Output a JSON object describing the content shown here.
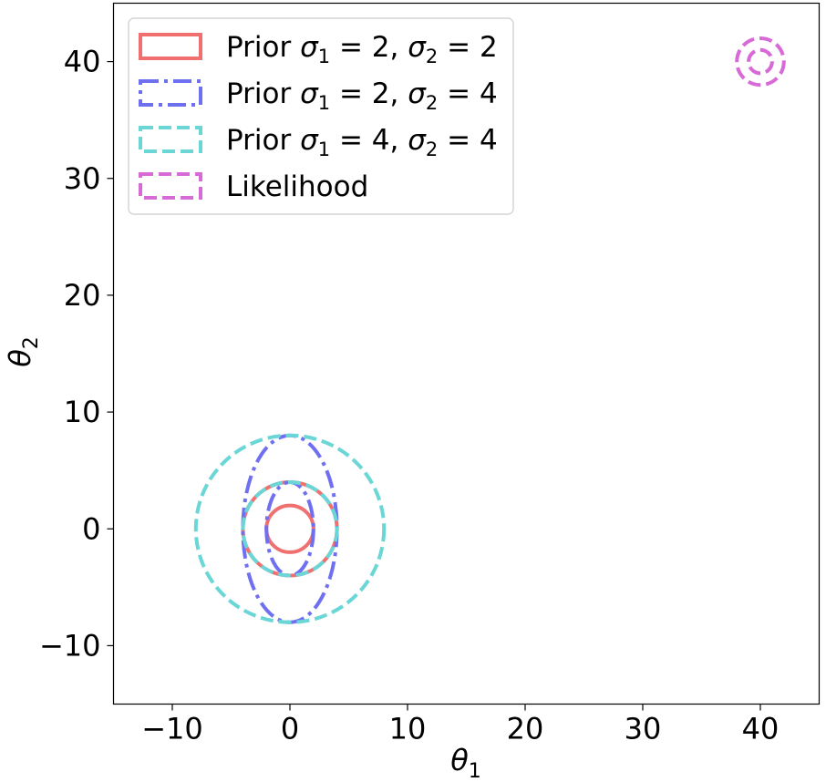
{
  "chart_data": {
    "type": "line",
    "xlim": [
      -15,
      45
    ],
    "ylim": [
      -15,
      45
    ],
    "xticks": [
      "−10",
      "0",
      "10",
      "20",
      "30",
      "40"
    ],
    "xtick_values": [
      -10,
      0,
      10,
      20,
      30,
      40
    ],
    "yticks": [
      "−10",
      "0",
      "10",
      "20",
      "30",
      "40"
    ],
    "ytick_values": [
      -10,
      0,
      10,
      20,
      30,
      40
    ],
    "xlabel": {
      "symbol": "θ",
      "sub": "1"
    },
    "ylabel": {
      "symbol": "θ",
      "sub": "2"
    },
    "grid": false,
    "legend_position": "top-left",
    "series": [
      {
        "name": "Prior σ1 = 2, σ2 = 2",
        "label": {
          "prefix": "Prior ",
          "a": "σ",
          "a_sub": "1",
          "a_val": " = 2, ",
          "b": "σ",
          "b_sub": "2",
          "b_val": " = 2"
        },
        "color": "#f07070",
        "dash": "solid",
        "ellipses": [
          {
            "cx": 0,
            "cy": 0,
            "rx": 2,
            "ry": 2
          },
          {
            "cx": 0,
            "cy": 0,
            "rx": 4,
            "ry": 4
          }
        ]
      },
      {
        "name": "Prior σ1 = 2, σ2 = 4",
        "label": {
          "prefix": "Prior ",
          "a": "σ",
          "a_sub": "1",
          "a_val": " = 2, ",
          "b": "σ",
          "b_sub": "2",
          "b_val": " = 4"
        },
        "color": "#6f6ff2",
        "dash": "dashdot",
        "ellipses": [
          {
            "cx": 0,
            "cy": 0,
            "rx": 2,
            "ry": 4
          },
          {
            "cx": 0,
            "cy": 0,
            "rx": 4,
            "ry": 8
          }
        ]
      },
      {
        "name": "Prior σ1 = 4, σ2 = 4",
        "label": {
          "prefix": "Prior ",
          "a": "σ",
          "a_sub": "1",
          "a_val": " = 4, ",
          "b": "σ",
          "b_sub": "2",
          "b_val": " = 4"
        },
        "color": "#6ad6d6",
        "dash": "dashed",
        "ellipses": [
          {
            "cx": 0,
            "cy": 0,
            "rx": 4,
            "ry": 4
          },
          {
            "cx": 0,
            "cy": 0,
            "rx": 8,
            "ry": 8
          }
        ]
      },
      {
        "name": "Likelihood",
        "label": {
          "prefix": "Likelihood"
        },
        "color": "#d86ad8",
        "dash": "dashed",
        "ellipses": [
          {
            "cx": 40,
            "cy": 40,
            "rx": 1,
            "ry": 1
          },
          {
            "cx": 40,
            "cy": 40,
            "rx": 2,
            "ry": 2
          }
        ]
      }
    ]
  }
}
